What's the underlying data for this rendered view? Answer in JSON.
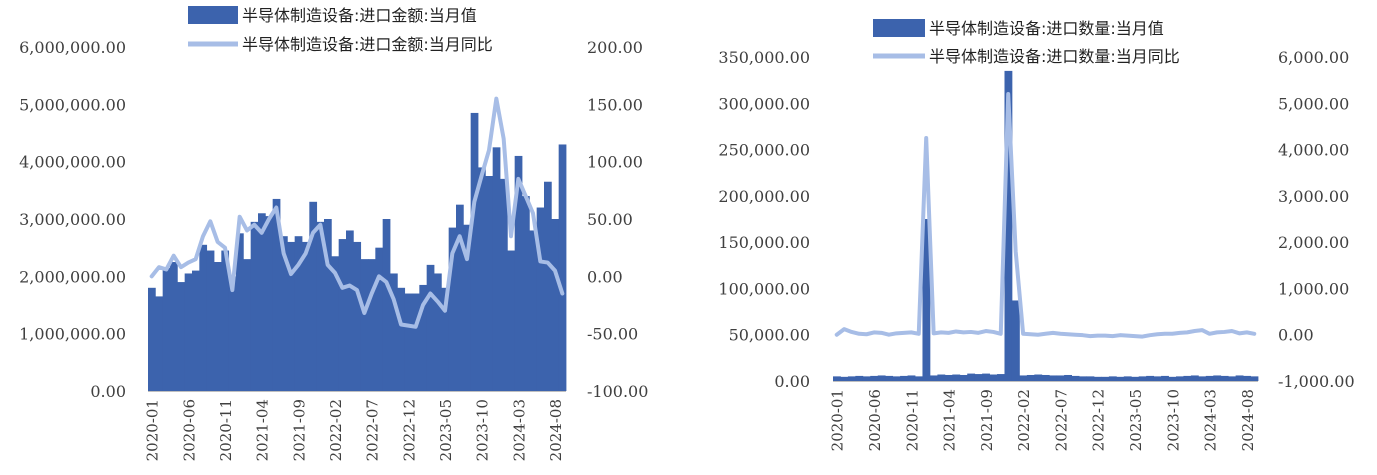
{
  "colors": {
    "bar": "#3c63ad",
    "line": "#a7bde6",
    "axis": "#bfbfbf",
    "text": "#404040"
  },
  "chart_data": [
    {
      "type": "bar+line",
      "legend": [
        "半导体制造设备:进口金额:当月值",
        "半导体制造设备:进口金额:当月同比"
      ],
      "left_ylim": [
        0,
        6000000
      ],
      "left_ticks": [
        "0.00",
        "1,000,000.00",
        "2,000,000.00",
        "3,000,000.00",
        "4,000,000.00",
        "5,000,000.00",
        "6,000,000.00"
      ],
      "right_ylim": [
        -100,
        200
      ],
      "right_ticks": [
        "-100.00",
        "-50.00",
        "0.00",
        "50.00",
        "100.00",
        "150.00",
        "200.00"
      ],
      "x_tick_labels": [
        "2020-01",
        "2020-06",
        "2020-11",
        "2021-04",
        "2021-09",
        "2022-02",
        "2022-07",
        "2022-12",
        "2023-05",
        "2023-10",
        "2024-03",
        "2024-08"
      ],
      "x_tick_every": 5,
      "series": [
        {
          "name": "半导体制造设备:进口金额:当月值",
          "type": "bar",
          "axis": "left",
          "values": [
            1800000,
            1650000,
            2150000,
            2250000,
            1900000,
            2050000,
            2100000,
            2550000,
            2450000,
            2250000,
            2450000,
            2000000,
            2750000,
            2300000,
            2950000,
            3100000,
            3050000,
            3350000,
            2700000,
            2600000,
            2700000,
            2600000,
            3300000,
            2950000,
            3000000,
            2350000,
            2650000,
            2800000,
            2600000,
            2300000,
            2300000,
            2500000,
            3000000,
            2050000,
            1800000,
            1700000,
            1700000,
            1850000,
            2200000,
            2050000,
            1800000,
            2850000,
            3250000,
            2900000,
            4850000,
            3900000,
            3750000,
            4250000,
            3700000,
            2450000,
            4100000,
            3400000,
            2800000,
            3200000,
            3650000,
            3000000,
            4300000
          ]
        },
        {
          "name": "半导体制造设备:进口金额:当月同比",
          "type": "line",
          "axis": "right",
          "values": [
            0,
            8,
            6,
            18,
            8,
            12,
            15,
            35,
            48,
            30,
            25,
            -12,
            52,
            40,
            45,
            38,
            50,
            60,
            20,
            2,
            10,
            20,
            38,
            45,
            10,
            3,
            -10,
            -8,
            -12,
            -32,
            -15,
            0,
            -5,
            -20,
            -42,
            -43,
            -44,
            -25,
            -15,
            -22,
            -30,
            20,
            35,
            15,
            65,
            88,
            110,
            155,
            120,
            35,
            85,
            70,
            55,
            13,
            12,
            5,
            -15
          ]
        }
      ]
    },
    {
      "type": "bar+line",
      "legend": [
        "半导体制造设备:进口数量:当月值",
        "半导体制造设备:进口数量:当月同比"
      ],
      "left_ylim": [
        0,
        350000
      ],
      "left_ticks": [
        "0.00",
        "50,000.00",
        "100,000.00",
        "150,000.00",
        "200,000.00",
        "250,000.00",
        "300,000.00",
        "350,000.00"
      ],
      "right_ylim": [
        -1000,
        6000
      ],
      "right_ticks": [
        "-1,000.00",
        "0.00",
        "1,000.00",
        "2,000.00",
        "3,000.00",
        "4,000.00",
        "5,000.00",
        "6,000.00"
      ],
      "x_tick_labels": [
        "2020-01",
        "2020-06",
        "2020-11",
        "2021-04",
        "2021-09",
        "2022-02",
        "2022-07",
        "2022-12",
        "2023-05",
        "2023-10",
        "2024-03",
        "2024-08"
      ],
      "x_tick_every": 5,
      "series": [
        {
          "name": "半导体制造设备:进口数量:当月值",
          "type": "bar",
          "axis": "left",
          "values": [
            5000,
            4500,
            5000,
            5500,
            5000,
            5500,
            6000,
            5500,
            5000,
            5500,
            6000,
            5000,
            175000,
            6000,
            7000,
            6500,
            7000,
            6500,
            8000,
            7500,
            8000,
            7000,
            7500,
            335000,
            87000,
            6000,
            6500,
            7000,
            6500,
            6000,
            6000,
            6500,
            5500,
            5000,
            5000,
            4500,
            4500,
            5000,
            4500,
            5000,
            4500,
            5000,
            5500,
            5000,
            5500,
            4500,
            5000,
            5500,
            6000,
            5000,
            5500,
            6000,
            5500,
            5000,
            6000,
            5500,
            5000
          ]
        },
        {
          "name": "半导体制造设备:进口数量:当月同比",
          "type": "line",
          "axis": "right",
          "values": [
            0,
            120,
            60,
            20,
            10,
            50,
            40,
            0,
            30,
            40,
            50,
            20,
            4250,
            30,
            50,
            40,
            70,
            50,
            60,
            40,
            80,
            60,
            20,
            5200,
            1800,
            20,
            10,
            0,
            20,
            40,
            20,
            10,
            0,
            -10,
            -30,
            -20,
            -20,
            -30,
            -10,
            -20,
            -30,
            -40,
            -10,
            10,
            20,
            20,
            40,
            50,
            80,
            100,
            20,
            50,
            60,
            80,
            30,
            50,
            20
          ]
        }
      ]
    }
  ]
}
